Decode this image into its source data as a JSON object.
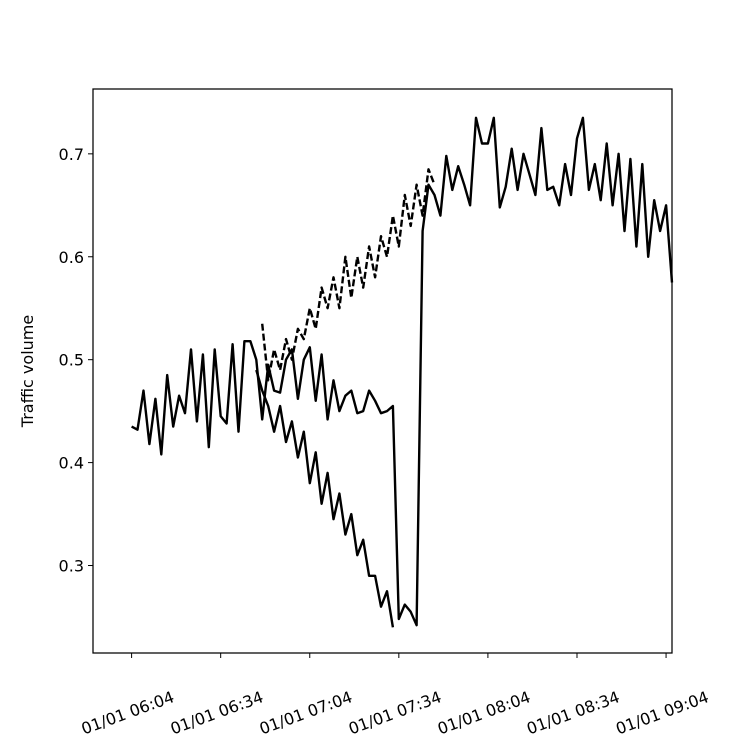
{
  "chart_data": {
    "type": "line",
    "ylabel": "Traffic volume",
    "xlabel": "",
    "title": "",
    "grid": false,
    "legend": "none",
    "x_axis": {
      "range": [
        "01/01 05:51",
        "01/01 09:06"
      ],
      "ticks": [
        "01/01 06:04",
        "01/01 06:34",
        "01/01 07:04",
        "01/01 07:34",
        "01/01 08:04",
        "01/01 08:34",
        "01/01 09:04"
      ]
    },
    "y_axis": {
      "range": [
        0.215,
        0.763
      ],
      "ticks": [
        0.3,
        0.4,
        0.5,
        0.6,
        0.7
      ],
      "tick_labels": [
        "0.3",
        "0.4",
        "0.5",
        "0.6",
        "0.7"
      ]
    },
    "series": [
      {
        "style": "solid",
        "color": "#000000",
        "points": [
          [
            "06:04",
            0.435
          ],
          [
            "06:06",
            0.432
          ],
          [
            "06:08",
            0.47
          ],
          [
            "06:10",
            0.418
          ],
          [
            "06:12",
            0.462
          ],
          [
            "06:14",
            0.408
          ],
          [
            "06:16",
            0.485
          ],
          [
            "06:18",
            0.435
          ],
          [
            "06:20",
            0.465
          ],
          [
            "06:22",
            0.448
          ],
          [
            "06:24",
            0.51
          ],
          [
            "06:26",
            0.44
          ],
          [
            "06:28",
            0.505
          ],
          [
            "06:30",
            0.415
          ],
          [
            "06:32",
            0.51
          ],
          [
            "06:34",
            0.445
          ],
          [
            "06:36",
            0.438
          ],
          [
            "06:38",
            0.515
          ],
          [
            "06:40",
            0.43
          ],
          [
            "06:42",
            0.518
          ],
          [
            "06:44",
            0.518
          ],
          [
            "06:46",
            0.5
          ],
          [
            "06:48",
            0.442
          ],
          [
            "06:50",
            0.495
          ],
          [
            "06:52",
            0.47
          ],
          [
            "06:54",
            0.468
          ],
          [
            "06:56",
            0.5
          ],
          [
            "06:58",
            0.51
          ],
          [
            "07:00",
            0.462
          ],
          [
            "07:02",
            0.5
          ],
          [
            "07:04",
            0.512
          ],
          [
            "07:06",
            0.46
          ],
          [
            "07:08",
            0.505
          ],
          [
            "07:10",
            0.442
          ],
          [
            "07:12",
            0.48
          ],
          [
            "07:14",
            0.45
          ],
          [
            "07:16",
            0.465
          ],
          [
            "07:18",
            0.47
          ],
          [
            "07:20",
            0.448
          ],
          [
            "07:22",
            0.45
          ],
          [
            "07:24",
            0.47
          ],
          [
            "07:26",
            0.46
          ],
          [
            "07:28",
            0.448
          ],
          [
            "07:30",
            0.45
          ],
          [
            "07:32",
            0.455
          ],
          [
            "07:34",
            0.248
          ],
          [
            "07:36",
            0.262
          ],
          [
            "07:38",
            0.255
          ],
          [
            "07:40",
            0.242
          ],
          [
            "07:42",
            0.625
          ],
          [
            "07:44",
            0.67
          ],
          [
            "07:46",
            0.66
          ],
          [
            "07:48",
            0.64
          ],
          [
            "07:50",
            0.698
          ],
          [
            "07:52",
            0.665
          ],
          [
            "07:54",
            0.688
          ],
          [
            "07:56",
            0.67
          ],
          [
            "07:58",
            0.65
          ],
          [
            "08:00",
            0.735
          ],
          [
            "08:02",
            0.71
          ],
          [
            "08:04",
            0.71
          ],
          [
            "08:06",
            0.735
          ],
          [
            "08:08",
            0.648
          ],
          [
            "08:10",
            0.668
          ],
          [
            "08:12",
            0.705
          ],
          [
            "08:14",
            0.665
          ],
          [
            "08:16",
            0.7
          ],
          [
            "08:18",
            0.68
          ],
          [
            "08:20",
            0.66
          ],
          [
            "08:22",
            0.725
          ],
          [
            "08:24",
            0.665
          ],
          [
            "08:26",
            0.668
          ],
          [
            "08:28",
            0.65
          ],
          [
            "08:30",
            0.69
          ],
          [
            "08:32",
            0.66
          ],
          [
            "08:34",
            0.715
          ],
          [
            "08:36",
            0.735
          ],
          [
            "08:38",
            0.665
          ],
          [
            "08:40",
            0.69
          ],
          [
            "08:42",
            0.655
          ],
          [
            "08:44",
            0.71
          ],
          [
            "08:46",
            0.65
          ],
          [
            "08:48",
            0.7
          ],
          [
            "08:50",
            0.625
          ],
          [
            "08:52",
            0.695
          ],
          [
            "08:54",
            0.61
          ],
          [
            "08:56",
            0.69
          ],
          [
            "08:58",
            0.6
          ],
          [
            "09:00",
            0.655
          ],
          [
            "09:02",
            0.625
          ],
          [
            "09:04",
            0.65
          ],
          [
            "09:06",
            0.575
          ]
        ]
      },
      {
        "style": "dashed",
        "color": "#000000",
        "points": [
          [
            "06:48",
            0.535
          ],
          [
            "06:50",
            0.48
          ],
          [
            "06:52",
            0.51
          ],
          [
            "06:54",
            0.49
          ],
          [
            "06:56",
            0.52
          ],
          [
            "06:58",
            0.5
          ],
          [
            "07:00",
            0.53
          ],
          [
            "07:02",
            0.52
          ],
          [
            "07:04",
            0.55
          ],
          [
            "07:06",
            0.53
          ],
          [
            "07:08",
            0.57
          ],
          [
            "07:10",
            0.55
          ],
          [
            "07:12",
            0.58
          ],
          [
            "07:14",
            0.55
          ],
          [
            "07:16",
            0.6
          ],
          [
            "07:18",
            0.56
          ],
          [
            "07:20",
            0.6
          ],
          [
            "07:22",
            0.57
          ],
          [
            "07:24",
            0.61
          ],
          [
            "07:26",
            0.58
          ],
          [
            "07:28",
            0.62
          ],
          [
            "07:30",
            0.6
          ],
          [
            "07:32",
            0.64
          ],
          [
            "07:34",
            0.61
          ],
          [
            "07:36",
            0.66
          ],
          [
            "07:38",
            0.63
          ],
          [
            "07:40",
            0.67
          ],
          [
            "07:42",
            0.64
          ],
          [
            "07:44",
            0.685
          ],
          [
            "07:46",
            0.67
          ]
        ]
      },
      {
        "style": "solid",
        "color": "#000000",
        "points": [
          [
            "06:46",
            0.49
          ],
          [
            "06:48",
            0.47
          ],
          [
            "06:50",
            0.455
          ],
          [
            "06:52",
            0.43
          ],
          [
            "06:54",
            0.455
          ],
          [
            "06:56",
            0.42
          ],
          [
            "06:58",
            0.44
          ],
          [
            "07:00",
            0.405
          ],
          [
            "07:02",
            0.43
          ],
          [
            "07:04",
            0.38
          ],
          [
            "07:06",
            0.41
          ],
          [
            "07:08",
            0.36
          ],
          [
            "07:10",
            0.39
          ],
          [
            "07:12",
            0.345
          ],
          [
            "07:14",
            0.37
          ],
          [
            "07:16",
            0.33
          ],
          [
            "07:18",
            0.35
          ],
          [
            "07:20",
            0.31
          ],
          [
            "07:22",
            0.325
          ],
          [
            "07:24",
            0.29
          ],
          [
            "07:26",
            0.29
          ],
          [
            "07:28",
            0.26
          ],
          [
            "07:30",
            0.275
          ],
          [
            "07:32",
            0.24
          ]
        ]
      }
    ]
  }
}
